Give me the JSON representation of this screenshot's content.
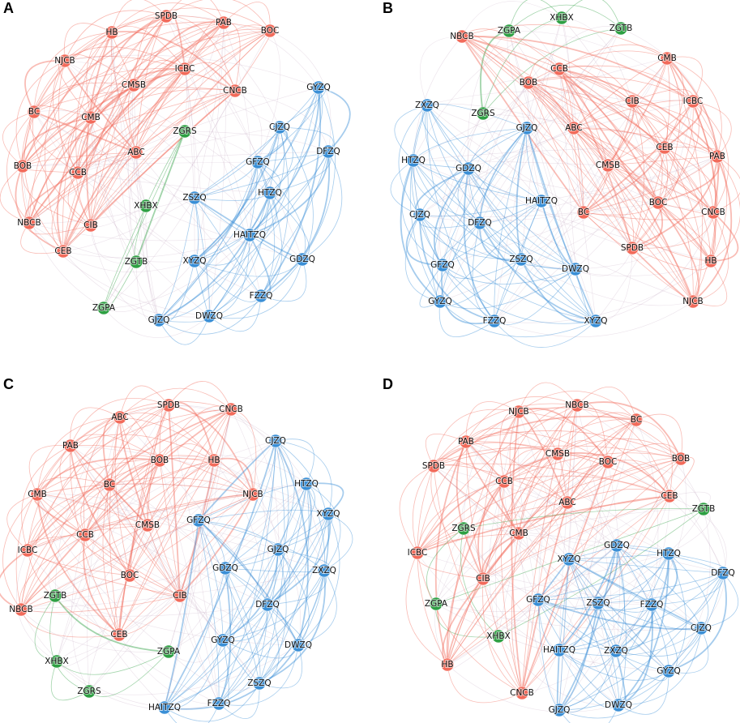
{
  "panels": [
    {
      "label": "A",
      "nodes": [
        {
          "label": "SPDB",
          "color": "#f26b5b"
        },
        {
          "label": "PAB",
          "color": "#f26b5b"
        },
        {
          "label": "HB",
          "color": "#f26b5b"
        },
        {
          "label": "BOC",
          "color": "#f26b5b"
        },
        {
          "label": "NJCB",
          "color": "#f26b5b"
        },
        {
          "label": "ICBC",
          "color": "#f26b5b"
        },
        {
          "label": "CMSB",
          "color": "#f26b5b"
        },
        {
          "label": "CNCB",
          "color": "#f26b5b"
        },
        {
          "label": "GYZQ",
          "color": "#3a8fd6"
        },
        {
          "label": "BC",
          "color": "#f26b5b"
        },
        {
          "label": "CMB",
          "color": "#f26b5b"
        },
        {
          "label": "ZGRS",
          "color": "#2ea043"
        },
        {
          "label": "CJZQ",
          "color": "#3a8fd6"
        },
        {
          "label": "DFZQ",
          "color": "#3a8fd6"
        },
        {
          "label": "ABC",
          "color": "#f26b5b"
        },
        {
          "label": "BOB",
          "color": "#f26b5b"
        },
        {
          "label": "CCB",
          "color": "#f26b5b"
        },
        {
          "label": "GFZQ",
          "color": "#3a8fd6"
        },
        {
          "label": "XHBX",
          "color": "#2ea043"
        },
        {
          "label": "ZSZQ",
          "color": "#3a8fd6"
        },
        {
          "label": "HTZQ",
          "color": "#3a8fd6"
        },
        {
          "label": "NBCB",
          "color": "#f26b5b"
        },
        {
          "label": "CIB",
          "color": "#f26b5b"
        },
        {
          "label": "HAITZQ",
          "color": "#3a8fd6"
        },
        {
          "label": "GDZQ",
          "color": "#3a8fd6"
        },
        {
          "label": "CEB",
          "color": "#f26b5b"
        },
        {
          "label": "ZGTB",
          "color": "#2ea043"
        },
        {
          "label": "XYZQ",
          "color": "#3a8fd6"
        },
        {
          "label": "FZZQ",
          "color": "#3a8fd6"
        },
        {
          "label": "ZGPA",
          "color": "#2ea043"
        },
        {
          "label": "GJZQ",
          "color": "#3a8fd6"
        },
        {
          "label": "DWZQ",
          "color": "#3a8fd6"
        }
      ]
    },
    {
      "label": "B",
      "nodes": [
        {
          "label": "ZGPA",
          "color": "#2ea043"
        },
        {
          "label": "XHBX",
          "color": "#2ea043"
        },
        {
          "label": "ZGTB",
          "color": "#2ea043"
        },
        {
          "label": "NBCB",
          "color": "#f26b5b"
        },
        {
          "label": "CCB",
          "color": "#f26b5b"
        },
        {
          "label": "CMB",
          "color": "#f26b5b"
        },
        {
          "label": "BOB",
          "color": "#f26b5b"
        },
        {
          "label": "CIB",
          "color": "#f26b5b"
        },
        {
          "label": "ICBC",
          "color": "#f26b5b"
        },
        {
          "label": "ZXZQ",
          "color": "#3a8fd6"
        },
        {
          "label": "ZGRS",
          "color": "#2ea043"
        },
        {
          "label": "ABC",
          "color": "#f26b5b"
        },
        {
          "label": "GJZQ",
          "color": "#3a8fd6"
        },
        {
          "label": "CEB",
          "color": "#f26b5b"
        },
        {
          "label": "PAB",
          "color": "#f26b5b"
        },
        {
          "label": "HTZQ",
          "color": "#3a8fd6"
        },
        {
          "label": "GDZQ",
          "color": "#3a8fd6"
        },
        {
          "label": "CMSB",
          "color": "#f26b5b"
        },
        {
          "label": "HAITZQ",
          "color": "#3a8fd6"
        },
        {
          "label": "BOC",
          "color": "#f26b5b"
        },
        {
          "label": "CNCB",
          "color": "#f26b5b"
        },
        {
          "label": "CJZQ",
          "color": "#3a8fd6"
        },
        {
          "label": "DFZQ",
          "color": "#3a8fd6"
        },
        {
          "label": "BC",
          "color": "#f26b5b"
        },
        {
          "label": "SPDB",
          "color": "#f26b5b"
        },
        {
          "label": "HB",
          "color": "#f26b5b"
        },
        {
          "label": "GFZQ",
          "color": "#3a8fd6"
        },
        {
          "label": "ZSZQ",
          "color": "#3a8fd6"
        },
        {
          "label": "DWZQ",
          "color": "#3a8fd6"
        },
        {
          "label": "NJCB",
          "color": "#f26b5b"
        },
        {
          "label": "GYZQ",
          "color": "#3a8fd6"
        },
        {
          "label": "FZZQ",
          "color": "#3a8fd6"
        },
        {
          "label": "XYZQ",
          "color": "#3a8fd6"
        }
      ]
    },
    {
      "label": "C",
      "nodes": [
        {
          "label": "SPDB",
          "color": "#f26b5b"
        },
        {
          "label": "CNCB",
          "color": "#f26b5b"
        },
        {
          "label": "ABC",
          "color": "#f26b5b"
        },
        {
          "label": "PAB",
          "color": "#f26b5b"
        },
        {
          "label": "BOB",
          "color": "#f26b5b"
        },
        {
          "label": "HB",
          "color": "#f26b5b"
        },
        {
          "label": "CJZQ",
          "color": "#3a8fd6"
        },
        {
          "label": "BC",
          "color": "#f26b5b"
        },
        {
          "label": "HTZQ",
          "color": "#3a8fd6"
        },
        {
          "label": "CMB",
          "color": "#f26b5b"
        },
        {
          "label": "NJCB",
          "color": "#f26b5b"
        },
        {
          "label": "GFZQ",
          "color": "#3a8fd6"
        },
        {
          "label": "CMSB",
          "color": "#f26b5b"
        },
        {
          "label": "XYZQ",
          "color": "#3a8fd6"
        },
        {
          "label": "CCB",
          "color": "#f26b5b"
        },
        {
          "label": "GJZQ",
          "color": "#3a8fd6"
        },
        {
          "label": "ICBC",
          "color": "#f26b5b"
        },
        {
          "label": "GDZQ",
          "color": "#3a8fd6"
        },
        {
          "label": "BOC",
          "color": "#f26b5b"
        },
        {
          "label": "ZXZQ",
          "color": "#3a8fd6"
        },
        {
          "label": "CIB",
          "color": "#f26b5b"
        },
        {
          "label": "NBCB",
          "color": "#f26b5b"
        },
        {
          "label": "ZGTB",
          "color": "#2ea043"
        },
        {
          "label": "DFZQ",
          "color": "#3a8fd6"
        },
        {
          "label": "CEB",
          "color": "#f26b5b"
        },
        {
          "label": "GYZQ",
          "color": "#3a8fd6"
        },
        {
          "label": "DWZQ",
          "color": "#3a8fd6"
        },
        {
          "label": "ZGPA",
          "color": "#2ea043"
        },
        {
          "label": "XHBX",
          "color": "#2ea043"
        },
        {
          "label": "ZSZQ",
          "color": "#3a8fd6"
        },
        {
          "label": "ZGRS",
          "color": "#2ea043"
        },
        {
          "label": "HAITZQ",
          "color": "#3a8fd6"
        },
        {
          "label": "FZZQ",
          "color": "#3a8fd6"
        }
      ]
    },
    {
      "label": "D",
      "nodes": [
        {
          "label": "NJCB",
          "color": "#f26b5b"
        },
        {
          "label": "NBCB",
          "color": "#f26b5b"
        },
        {
          "label": "BC",
          "color": "#f26b5b"
        },
        {
          "label": "PAB",
          "color": "#f26b5b"
        },
        {
          "label": "CMSB",
          "color": "#f26b5b"
        },
        {
          "label": "BOC",
          "color": "#f26b5b"
        },
        {
          "label": "BOB",
          "color": "#f26b5b"
        },
        {
          "label": "SPDB",
          "color": "#f26b5b"
        },
        {
          "label": "CCB",
          "color": "#f26b5b"
        },
        {
          "label": "CEB",
          "color": "#f26b5b"
        },
        {
          "label": "ABC",
          "color": "#f26b5b"
        },
        {
          "label": "ZGTB",
          "color": "#2ea043"
        },
        {
          "label": "ZGRS",
          "color": "#2ea043"
        },
        {
          "label": "CMB",
          "color": "#f26b5b"
        },
        {
          "label": "ICBC",
          "color": "#f26b5b"
        },
        {
          "label": "XYZQ",
          "color": "#3a8fd6"
        },
        {
          "label": "GDZQ",
          "color": "#3a8fd6"
        },
        {
          "label": "HTZQ",
          "color": "#3a8fd6"
        },
        {
          "label": "CIB",
          "color": "#f26b5b"
        },
        {
          "label": "DFZQ",
          "color": "#3a8fd6"
        },
        {
          "label": "GFZQ",
          "color": "#3a8fd6"
        },
        {
          "label": "ZSZQ",
          "color": "#3a8fd6"
        },
        {
          "label": "FZZQ",
          "color": "#3a8fd6"
        },
        {
          "label": "ZGPA",
          "color": "#2ea043"
        },
        {
          "label": "XHBX",
          "color": "#2ea043"
        },
        {
          "label": "CJZQ",
          "color": "#3a8fd6"
        },
        {
          "label": "HAITZQ",
          "color": "#3a8fd6"
        },
        {
          "label": "ZXZQ",
          "color": "#3a8fd6"
        },
        {
          "label": "HB",
          "color": "#f26b5b"
        },
        {
          "label": "GYZQ",
          "color": "#3a8fd6"
        },
        {
          "label": "CNCB",
          "color": "#f26b5b"
        },
        {
          "label": "GJZQ",
          "color": "#3a8fd6"
        },
        {
          "label": "DWZQ",
          "color": "#3a8fd6"
        }
      ]
    }
  ]
}
